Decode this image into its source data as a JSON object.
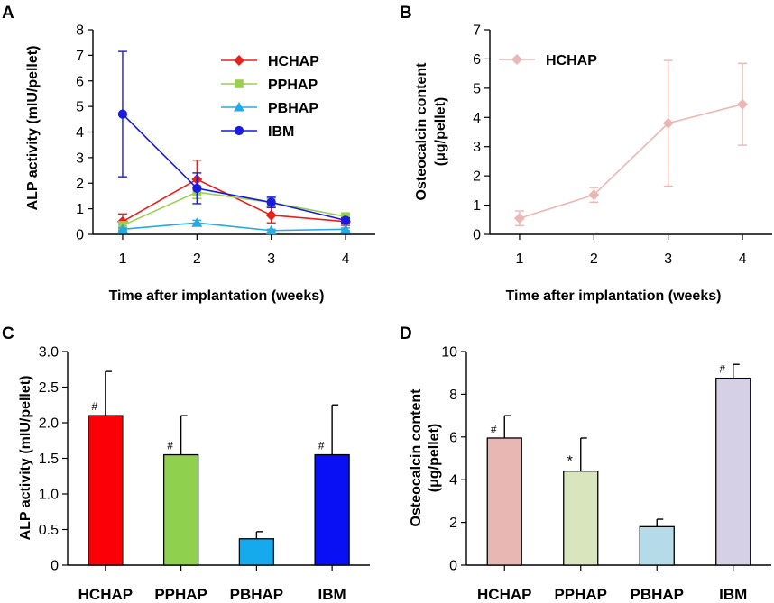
{
  "colors": {
    "HCHAP": "#e8201b",
    "PPHAP": "#98d14d",
    "PBHAP": "#29a9e1",
    "IBM": "#1a1ae0",
    "A_colors": {
      "HCHAP": "#e8201b",
      "PPHAP": "#98d14d",
      "PBHAP": "#29a9e1",
      "IBM": "#1a1ae0"
    },
    "B_line": "#e9b8b5",
    "C_bars": {
      "HCHAP": "#fb0006",
      "PPHAP": "#8fd14f",
      "PBHAP": "#14aaec",
      "IBM": "#0a10f4"
    },
    "D_bars": {
      "HCHAP": "#e9b7b3",
      "PPHAP": "#d9e5bc",
      "PBHAP": "#b4dbe7",
      "IBM": "#d6d0e6"
    }
  },
  "chart_data": [
    {
      "panel": "A",
      "type": "line",
      "xlabel": "Time after implantation (weeks)",
      "ylabel": "ALP activity (mIU/pellet)",
      "x": [
        1,
        2,
        3,
        4
      ],
      "xticks": [
        "1",
        "2",
        "3",
        "4"
      ],
      "xlim": [
        0.6,
        4.4
      ],
      "ylim": [
        0,
        8
      ],
      "yticks": [
        "0",
        "1",
        "2",
        "3",
        "4",
        "5",
        "6",
        "7",
        "8"
      ],
      "legend": "top-right",
      "series": [
        {
          "name": "HCHAP",
          "marker": "diamond",
          "values": [
            0.5,
            2.15,
            0.75,
            0.5
          ],
          "errors": [
            0.3,
            0.75,
            0.3,
            0.15
          ]
        },
        {
          "name": "PPHAP",
          "marker": "square",
          "values": [
            0.35,
            1.65,
            1.25,
            0.7
          ],
          "errors": [
            0.15,
            0.25,
            0.15,
            0.1
          ]
        },
        {
          "name": "PBHAP",
          "marker": "triangle",
          "values": [
            0.2,
            0.45,
            0.15,
            0.2
          ],
          "errors": [
            0.05,
            0.1,
            0.05,
            0.05
          ]
        },
        {
          "name": "IBM",
          "marker": "circle",
          "values": [
            4.7,
            1.8,
            1.25,
            0.55
          ],
          "errors": [
            2.45,
            0.6,
            0.2,
            0.1
          ]
        }
      ]
    },
    {
      "panel": "B",
      "type": "line",
      "xlabel": "Time after implantation (weeks)",
      "ylabel": "Osteocalcin content",
      "ylabel2": "(μg/pellet)",
      "x": [
        1,
        2,
        3,
        4
      ],
      "xticks": [
        "1",
        "2",
        "3",
        "4"
      ],
      "xlim": [
        0.6,
        4.4
      ],
      "ylim": [
        0,
        7
      ],
      "yticks": [
        "0",
        "1",
        "2",
        "3",
        "4",
        "5",
        "6",
        "7"
      ],
      "legend": "top-left",
      "series": [
        {
          "name": "HCHAP",
          "marker": "diamond",
          "values": [
            0.55,
            1.35,
            3.8,
            4.45
          ],
          "errors": [
            0.25,
            0.25,
            2.15,
            1.4
          ]
        }
      ]
    },
    {
      "panel": "C",
      "type": "bar",
      "ylabel": "ALP activity (mIU/pellet)",
      "categories": [
        "HCHAP",
        "PPHAP",
        "PBHAP",
        "IBM"
      ],
      "values": [
        2.1,
        1.55,
        0.37,
        1.55
      ],
      "errors": [
        0.62,
        0.55,
        0.1,
        0.7
      ],
      "annotations": [
        "#",
        "#",
        "",
        "#"
      ],
      "ylim": [
        0,
        3.0
      ],
      "yticks": [
        "0",
        "0.5",
        "1.0",
        "1.5",
        "2.0",
        "2.5",
        "3.0"
      ]
    },
    {
      "panel": "D",
      "type": "bar",
      "ylabel": "Osteocalcin content",
      "ylabel2": "(μg/pellet)",
      "categories": [
        "HCHAP",
        "PPHAP",
        "PBHAP",
        "IBM"
      ],
      "values": [
        5.95,
        4.4,
        1.8,
        8.75
      ],
      "errors": [
        1.05,
        1.55,
        0.35,
        0.65
      ],
      "annotations": [
        "#",
        "*",
        "",
        "#"
      ],
      "ylim": [
        0,
        10
      ],
      "yticks": [
        "0",
        "2",
        "4",
        "6",
        "8",
        "10"
      ]
    }
  ]
}
